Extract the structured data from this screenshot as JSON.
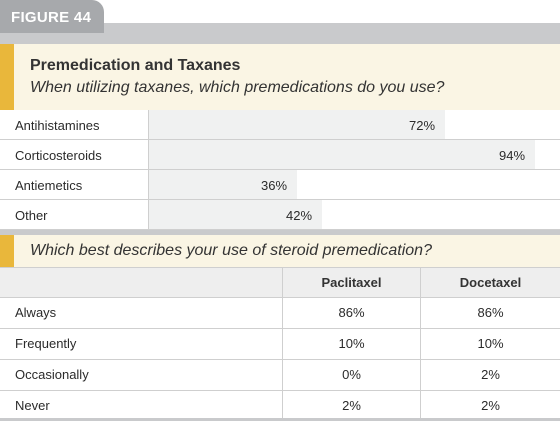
{
  "figure_label": "FIGURE 44",
  "colors": {
    "accent": "#e9b73b",
    "band": "#c9cacc",
    "panel": "#faf5e4",
    "bar": "#f0f1f1"
  },
  "chart_data": [
    {
      "type": "bar",
      "orientation": "horizontal",
      "title": "Premedication and Taxanes",
      "subtitle": "When utilizing taxanes, which premedications do you use?",
      "categories": [
        "Antihistamines",
        "Corticosteroids",
        "Antiemetics",
        "Other"
      ],
      "values": [
        72,
        94,
        36,
        42
      ],
      "value_labels": [
        "72%",
        "94%",
        "36%",
        "42%"
      ],
      "unit": "%",
      "xlim": [
        0,
        100
      ],
      "grid": false
    },
    {
      "type": "table",
      "title": "Which best describes your use of steroid premedication?",
      "columns": [
        "",
        "Paclitaxel",
        "Docetaxel"
      ],
      "rows": [
        [
          "Always",
          "86%",
          "86%"
        ],
        [
          "Frequently",
          "10%",
          "10%"
        ],
        [
          "Occasionally",
          "0%",
          "2%"
        ],
        [
          "Never",
          "2%",
          "2%"
        ]
      ]
    }
  ]
}
